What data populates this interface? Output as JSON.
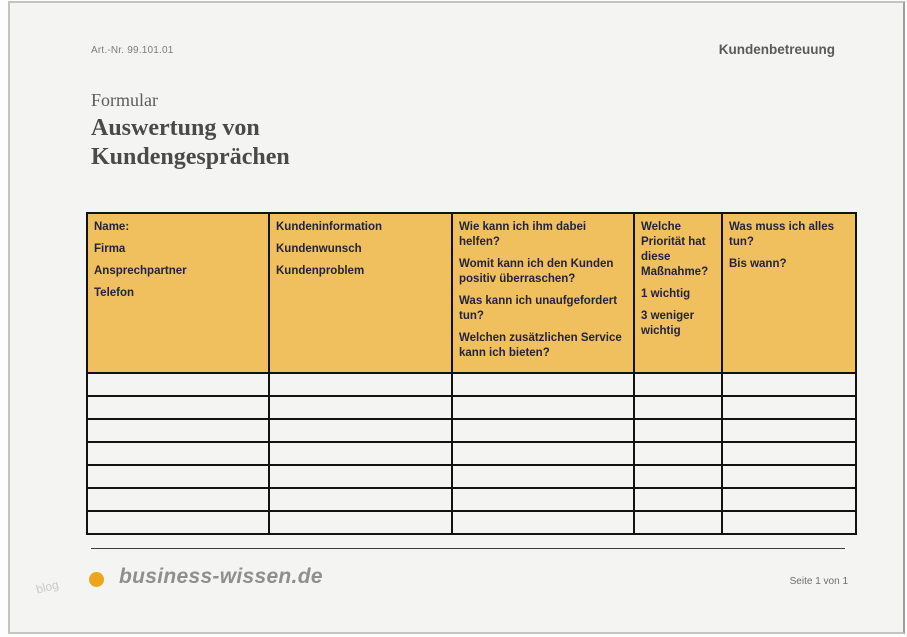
{
  "header": {
    "art_nr": "Art.-Nr. 99.101.01",
    "category": "Kundenbetreuung"
  },
  "title": {
    "doc_type": "Formular",
    "line1": "Auswertung von",
    "line2": "Kundengesprächen"
  },
  "table": {
    "header_bg": "#F0C05F",
    "columns": [
      {
        "name": "kontakt",
        "lines": [
          "Name:",
          "Firma",
          "Ansprechpartner",
          "Telefon"
        ]
      },
      {
        "name": "kundeninformation",
        "lines": [
          "Kundeninformation",
          "Kundenwunsch",
          "Kundenproblem"
        ]
      },
      {
        "name": "hilfe-fragen",
        "lines": [
          "Wie kann ich ihm dabei helfen?",
          "Womit kann ich den Kunden positiv überraschen?",
          "Was kann ich unaufgefordert tun?",
          "Welchen zusätzlichen Service kann ich bieten?"
        ]
      },
      {
        "name": "prioritaet",
        "lines": [
          "Welche Priorität hat diese Maßnahme?",
          "1 wichtig",
          "3 weniger wichtig"
        ]
      },
      {
        "name": "massnahmen",
        "lines": [
          "Was muss ich alles tun?",
          "Bis wann?"
        ]
      }
    ],
    "empty_row_count": 7
  },
  "footer": {
    "dot_color": "#ECA51D",
    "brand": "business-wissen.de",
    "page_indicator": "Seite 1 von 1",
    "watermark": "blog"
  }
}
